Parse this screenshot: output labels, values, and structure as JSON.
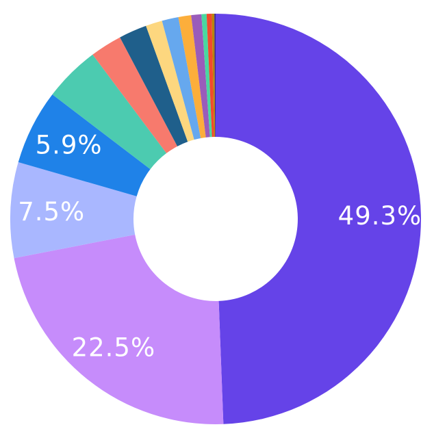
{
  "chart_data": {
    "type": "pie",
    "variant": "donut",
    "title": "",
    "legend": "none",
    "start_angle_deg": 0,
    "direction": "clockwise",
    "slices": [
      {
        "value": 49.3,
        "label": "49.3%",
        "color": "#6543e8"
      },
      {
        "value": 22.5,
        "label": "22.5%",
        "color": "#c68cfb"
      },
      {
        "value": 7.5,
        "label": "7.5%",
        "color": "#a9b7ff"
      },
      {
        "value": 5.9,
        "label": "5.9%",
        "color": "#1f82e8"
      },
      {
        "value": 4.4,
        "label": "",
        "color": "#4ccbb0"
      },
      {
        "value": 2.5,
        "label": "",
        "color": "#f77a6d"
      },
      {
        "value": 2.2,
        "label": "",
        "color": "#1f5f8b"
      },
      {
        "value": 1.3,
        "label": "",
        "color": "#fdd77f"
      },
      {
        "value": 1.3,
        "label": "",
        "color": "#66a8ee"
      },
      {
        "value": 1.0,
        "label": "",
        "color": "#fcae3b"
      },
      {
        "value": 0.8,
        "label": "",
        "color": "#9a5cba"
      },
      {
        "value": 0.4,
        "label": "",
        "color": "#49d8a0"
      },
      {
        "value": 0.4,
        "label": "",
        "color": "#f24a2c"
      },
      {
        "value": 0.2,
        "label": "",
        "color": "#b8860b"
      },
      {
        "value": 0.1,
        "label": "",
        "color": "#3b2a8a"
      }
    ]
  }
}
